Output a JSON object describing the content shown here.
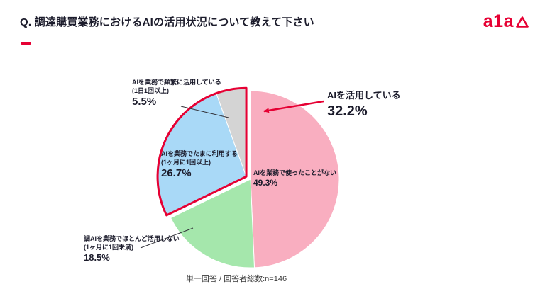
{
  "page": {
    "title": "Q. 調達購買業務におけるAIの活用状況について教えて下さい",
    "footnote": "単一回答 / 回答者総数:n=146",
    "logo_text": "a1a",
    "accent_color": "#E60033"
  },
  "chart_data": {
    "type": "pie",
    "question": "調達購買業務におけるAIの活用状況について教えて下さい",
    "answer_type": "単一回答",
    "n": 146,
    "start": "top",
    "direction": "clockwise",
    "legend": "none",
    "outline_color": "#E60033",
    "segments": [
      {
        "key": "never",
        "label": "AIを業務で使ったことがない",
        "sublabel": "",
        "value": 49.3,
        "value_label": "49.3%",
        "color": "#F9AEC0",
        "highlighted": false
      },
      {
        "key": "rarely",
        "label": "調AIを業務でほとんど活用しない",
        "sublabel": "(1ヶ月に1回未満)",
        "value": 18.5,
        "value_label": "18.5%",
        "color": "#A5E7AC",
        "highlighted": false
      },
      {
        "key": "sometimes",
        "label": "AIを業務でたまに利用する",
        "sublabel": "(1ヶ月に1回以上)",
        "value": 26.7,
        "value_label": "26.7%",
        "color": "#A9D9F7",
        "highlighted": true
      },
      {
        "key": "frequently",
        "label": "AIを業務で頻繁に活用している",
        "sublabel": "(1日1回以上)",
        "value": 5.5,
        "value_label": "5.5%",
        "color": "#D4D4D4",
        "highlighted": true
      }
    ],
    "callout": {
      "label": "AIを活用している",
      "value": 32.2,
      "value_label": "32.2%"
    }
  }
}
